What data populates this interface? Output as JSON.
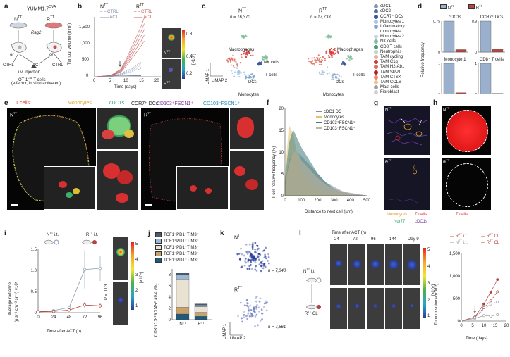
{
  "panels": {
    "a": "a",
    "b": "b",
    "c": "c",
    "d": "d",
    "e": "e",
    "f": "f",
    "g": "g",
    "h": "h",
    "i": "i",
    "j": "j",
    "k": "k",
    "l": "l"
  },
  "a": {
    "model": "YUMM1.7",
    "model_sup": "OVA",
    "nt": "N",
    "rt": "R",
    "sup": "TT",
    "rag2": "Rag2",
    "ctrl": "CTRL",
    "act": "ACT",
    "or": "or",
    "injection1": "i.v. injection",
    "injection2": "OT-1",
    "injection2_sup": "Luc",
    "injection2b": " T cells",
    "injection3": "(effector, in vitro activated)"
  },
  "b": {
    "nt_title": "N",
    "rt_title": "R",
    "sup": "TT",
    "ctrl": "CTRL",
    "act": "ACT",
    "ylabel": "Tumour volume (mm³)",
    "xlabel": "Time (days)",
    "yticks": [
      "0",
      "500",
      "1,000",
      "1,500"
    ],
    "xticks": [
      "0",
      "5",
      "10",
      "15",
      "20"
    ],
    "cb_ticks": [
      "0.8",
      "0.4",
      "0.2"
    ],
    "cb_label": "[×10⁷]",
    "img_nt": "N",
    "img_rt": "R"
  },
  "c": {
    "nt_title": "N",
    "rt_title": "R",
    "sup": "TT",
    "n_nt": "n = 16,370",
    "n_rt": "n = 17,733",
    "macro": "Macrophages",
    "nk": "NK cells",
    "tcells": "T cells",
    "dcs": "DCs",
    "mono": "Monocytes",
    "umap1": "UMAP 1",
    "umap2": "UMAP 2",
    "legend": [
      {
        "label": "cDC1",
        "color": "#7a97b8"
      },
      {
        "label": "cDC2",
        "color": "#4f6f95"
      },
      {
        "label": "CCR7⁺ DCs",
        "color": "#3b55a0"
      },
      {
        "label": "Monocytes 1",
        "color": "#a9c7e0"
      },
      {
        "label": "Inflammatory",
        "color": "#82a6c9"
      },
      {
        "label": "monocytes",
        "color": ""
      },
      {
        "label": "Monocytes 2",
        "color": "#c4d6e6"
      },
      {
        "label": "NK cells",
        "color": "#7fbf9c"
      },
      {
        "label": "CD8 T cells",
        "color": "#4e9a77"
      },
      {
        "label": "Neutrophils",
        "color": "#b5dcc4"
      },
      {
        "label": "TAM cycling",
        "color": "#f2a9a0"
      },
      {
        "label": "TAM C1q",
        "color": "#d63c3a"
      },
      {
        "label": "TAM H2-Ab1",
        "color": "#e06b5a"
      },
      {
        "label": "TAM SPP1",
        "color": "#b71f28"
      },
      {
        "label": "TAM CTSK",
        "color": "#ec8a64"
      },
      {
        "label": "TAM CCL6",
        "color": "#f4c08a"
      },
      {
        "label": "Mast cells",
        "color": "#9e9e9e"
      },
      {
        "label": "Fibroblast",
        "color": "#cfcfcf"
      }
    ]
  },
  "d": {
    "legend_nt": "N",
    "legend_rt": "R",
    "sup": "TT",
    "ylabel": "Relative frequency",
    "charts": [
      {
        "title": "cDC1s",
        "yticks": [
          "0",
          "0.75"
        ],
        "nt": 0.75,
        "rt": 0.06,
        "ymax": 0.75
      },
      {
        "title": "CCR7⁺ DCs",
        "yticks": [
          "0",
          "0.9"
        ],
        "nt": 0.9,
        "rt": 0.08,
        "ymax": 0.9
      },
      {
        "title": "Monocyte 1",
        "yticks": [
          "0",
          "1"
        ],
        "nt": 1.0,
        "rt": 0.05,
        "ymax": 1
      },
      {
        "title": "CD8⁺ T cells",
        "yticks": [
          "0",
          "1"
        ],
        "nt": 1.0,
        "rt": 0.03,
        "ymax": 1
      }
    ]
  },
  "e": {
    "tcells": "T cells",
    "mono": "Monocytes",
    "cdc1": "cDC1s",
    "ccr7": "CCR7⁺ DCs:",
    "c103hi": "CD103⁺FSCN1⁺",
    "c103lo": "CD103⁻FSCN1⁺",
    "nt": "N",
    "rt": "R",
    "sup": "TT"
  },
  "f": {
    "ylabel": "T cell relative frequency (%)",
    "xlabel": "Distance to next cell (µm)",
    "yticks": [
      "0",
      "5",
      "10",
      "15",
      "20"
    ],
    "xticks": [
      "0",
      "100",
      "200",
      "300",
      "400",
      "500"
    ],
    "chart_data": {
      "type": "area",
      "xlabel": "Distance to next cell (µm)",
      "ylabel": "T cell relative frequency (%)",
      "xlim": [
        0,
        500
      ],
      "ylim": [
        0,
        20
      ],
      "x": [
        0,
        25,
        50,
        75,
        100,
        150,
        200,
        250,
        300,
        350,
        400,
        450,
        500
      ],
      "series": [
        {
          "name": "cDC1 DC",
          "color": "#7d8fb0",
          "values": [
            2,
            8,
            10,
            10,
            9,
            7,
            5,
            3,
            2,
            1,
            0.6,
            0.3,
            0
          ]
        },
        {
          "name": "Monocytes",
          "color": "#e6c26a",
          "values": [
            4,
            16,
            14,
            9,
            6,
            3,
            1.5,
            0.8,
            0.4,
            0.2,
            0.1,
            0,
            0
          ]
        },
        {
          "name": "CD103⁺FSCN1⁺",
          "color": "#3f7c78",
          "values": [
            3,
            12,
            15,
            13,
            11,
            8,
            5,
            3,
            1.5,
            0.8,
            0.4,
            0.2,
            0
          ]
        },
        {
          "name": "CD103⁻FSCN1⁺",
          "color": "#c7b49a",
          "values": [
            2,
            7,
            10,
            10,
            8,
            6,
            4,
            2.5,
            1.5,
            1,
            0.5,
            0.2,
            0
          ]
        }
      ]
    }
  },
  "g": {
    "nt": "N",
    "rt": "R",
    "sup": "TT",
    "mono": "Monocytes",
    "nur77": "Nur77",
    "tcells": "T cells",
    "cdc1": "cDC1s",
    "zero": "0"
  },
  "h": {
    "nt": "N",
    "rt": "R",
    "sup": "TT",
    "tcells": "T cells"
  },
  "i": {
    "nt_it": "N",
    "rt_it": "R",
    "sup": "TT",
    "it": " i.t.",
    "ylabel1": "Average radiance",
    "ylabel2": "(p s⁻¹ cm⁻² sr⁻¹) ×10⁵",
    "xlabel": "Time after ACT (h)",
    "yticks": [
      "0",
      "0.5",
      "1.0",
      "1.5"
    ],
    "xticks": [
      "0",
      "24",
      "48",
      "72",
      "96"
    ],
    "pval": "P = 0.03",
    "cb_ticks": [
      "5",
      "4",
      "3",
      "2",
      "1"
    ],
    "cb_label": "[×10⁴]",
    "chart_data": {
      "type": "line",
      "xlabel": "Time after ACT (h)",
      "ylabel": "Average radiance (p s⁻¹ cm⁻² sr⁻¹) ×10⁵",
      "xlim": [
        0,
        96
      ],
      "ylim": [
        0,
        1.5
      ],
      "x": [
        0,
        24,
        48,
        72,
        96
      ],
      "series": [
        {
          "name": "N TT i.t.",
          "color": "#8a9ab0",
          "values": [
            0.02,
            0.05,
            0.12,
            1.02,
            1.05
          ],
          "err": [
            0.01,
            0.02,
            0.05,
            0.45,
            0.3
          ]
        },
        {
          "name": "R TT i.t.",
          "color": "#b0413e",
          "values": [
            0.02,
            0.03,
            0.06,
            0.18,
            0.16
          ],
          "err": [
            0.01,
            0.01,
            0.02,
            0.07,
            0.06
          ]
        }
      ]
    }
  },
  "j": {
    "legend": [
      {
        "label": "TCF1⁻PD1⁺TIM3⁻",
        "color": "#4d5968"
      },
      {
        "label": "TCF1⁺PD1⁻TIM3⁻",
        "color": "#9bb8d6"
      },
      {
        "label": "TCF1⁻PD1⁻TIM3⁻",
        "color": "#e9e2d2"
      },
      {
        "label": "TCF1⁻PD1⁺TIM3⁺",
        "color": "#c7a26a"
      },
      {
        "label": "TCF1⁻PD1⁻TIM3⁺",
        "color": "#1f5a7a"
      }
    ],
    "ylabel": "CD3⁺CD8⁺/CD45⁺ alive (%)",
    "yticks": [
      "0",
      "2",
      "4",
      "6",
      "8"
    ],
    "xticks": [
      "N",
      "R"
    ],
    "sup": "TT",
    "chart_data": {
      "type": "bar",
      "categories": [
        "NTT",
        "RTT"
      ],
      "ylim": [
        0,
        9
      ],
      "series": [
        {
          "name": "TCF1⁻PD1⁻TIM3⁺",
          "values": [
            1.0,
            0.6
          ]
        },
        {
          "name": "TCF1⁻PD1⁺TIM3⁺",
          "values": [
            1.2,
            0.7
          ]
        },
        {
          "name": "TCF1⁻PD1⁻TIM3⁻",
          "values": [
            5.0,
            1.0
          ]
        },
        {
          "name": "TCF1⁺PD1⁻TIM3⁻",
          "values": [
            0.8,
            0.3
          ]
        },
        {
          "name": "TCF1⁻PD1⁺TIM3⁻",
          "values": [
            0.3,
            0.2
          ]
        }
      ]
    }
  },
  "k": {
    "nt": "N",
    "rt": "R",
    "sup": "TT",
    "n_nt": "n = 7,040",
    "n_rt": "n = 7,561",
    "umap1": "UMAP 1",
    "umap2": "UMAP 2"
  },
  "l": {
    "nt_it": "N",
    "rt_cl": "R",
    "sup": "TT",
    "it": " i.t.",
    "cl": " CL",
    "time_header": "Time after ACT (h)",
    "times": [
      "24",
      "72",
      "96",
      "144",
      "Day 9"
    ],
    "cb_ticks": [
      "5",
      "4",
      "3",
      "2",
      "1"
    ],
    "cb_label": "[×10⁴]",
    "legend": [
      "R",
      "R",
      "N",
      "R"
    ],
    "legend_sfx": [
      " i.t.",
      " CL",
      " i.t.",
      " CL"
    ],
    "ylabel": "Tumour volume (mm³)",
    "xlabel": "Time (days)",
    "yticks": [
      "0",
      "500",
      "1,000",
      "1,500"
    ],
    "xticks": [
      "0",
      "5",
      "10",
      "15",
      "20"
    ],
    "chart_data": {
      "type": "line",
      "xlabel": "Time (days)",
      "ylabel": "Tumour volume (mm³)",
      "xlim": [
        0,
        20
      ],
      "ylim": [
        0,
        1500
      ],
      "x": [
        0,
        6,
        10,
        13,
        16
      ],
      "series": [
        {
          "name": "R TT i.t.",
          "color": "#b0413e",
          "values": [
            0,
            90,
            380,
            640,
            920
          ]
        },
        {
          "name": "R TT CL",
          "color": "#b0413e",
          "values": [
            0,
            90,
            300,
            450,
            650
          ]
        },
        {
          "name": "N TT i.t.",
          "color": "#8a8f98",
          "values": [
            0,
            60,
            120,
            110,
            140
          ]
        },
        {
          "name": "R TT CL ",
          "color": "#8a8f98",
          "values": [
            0,
            80,
            250,
            380,
            420
          ]
        }
      ]
    }
  }
}
